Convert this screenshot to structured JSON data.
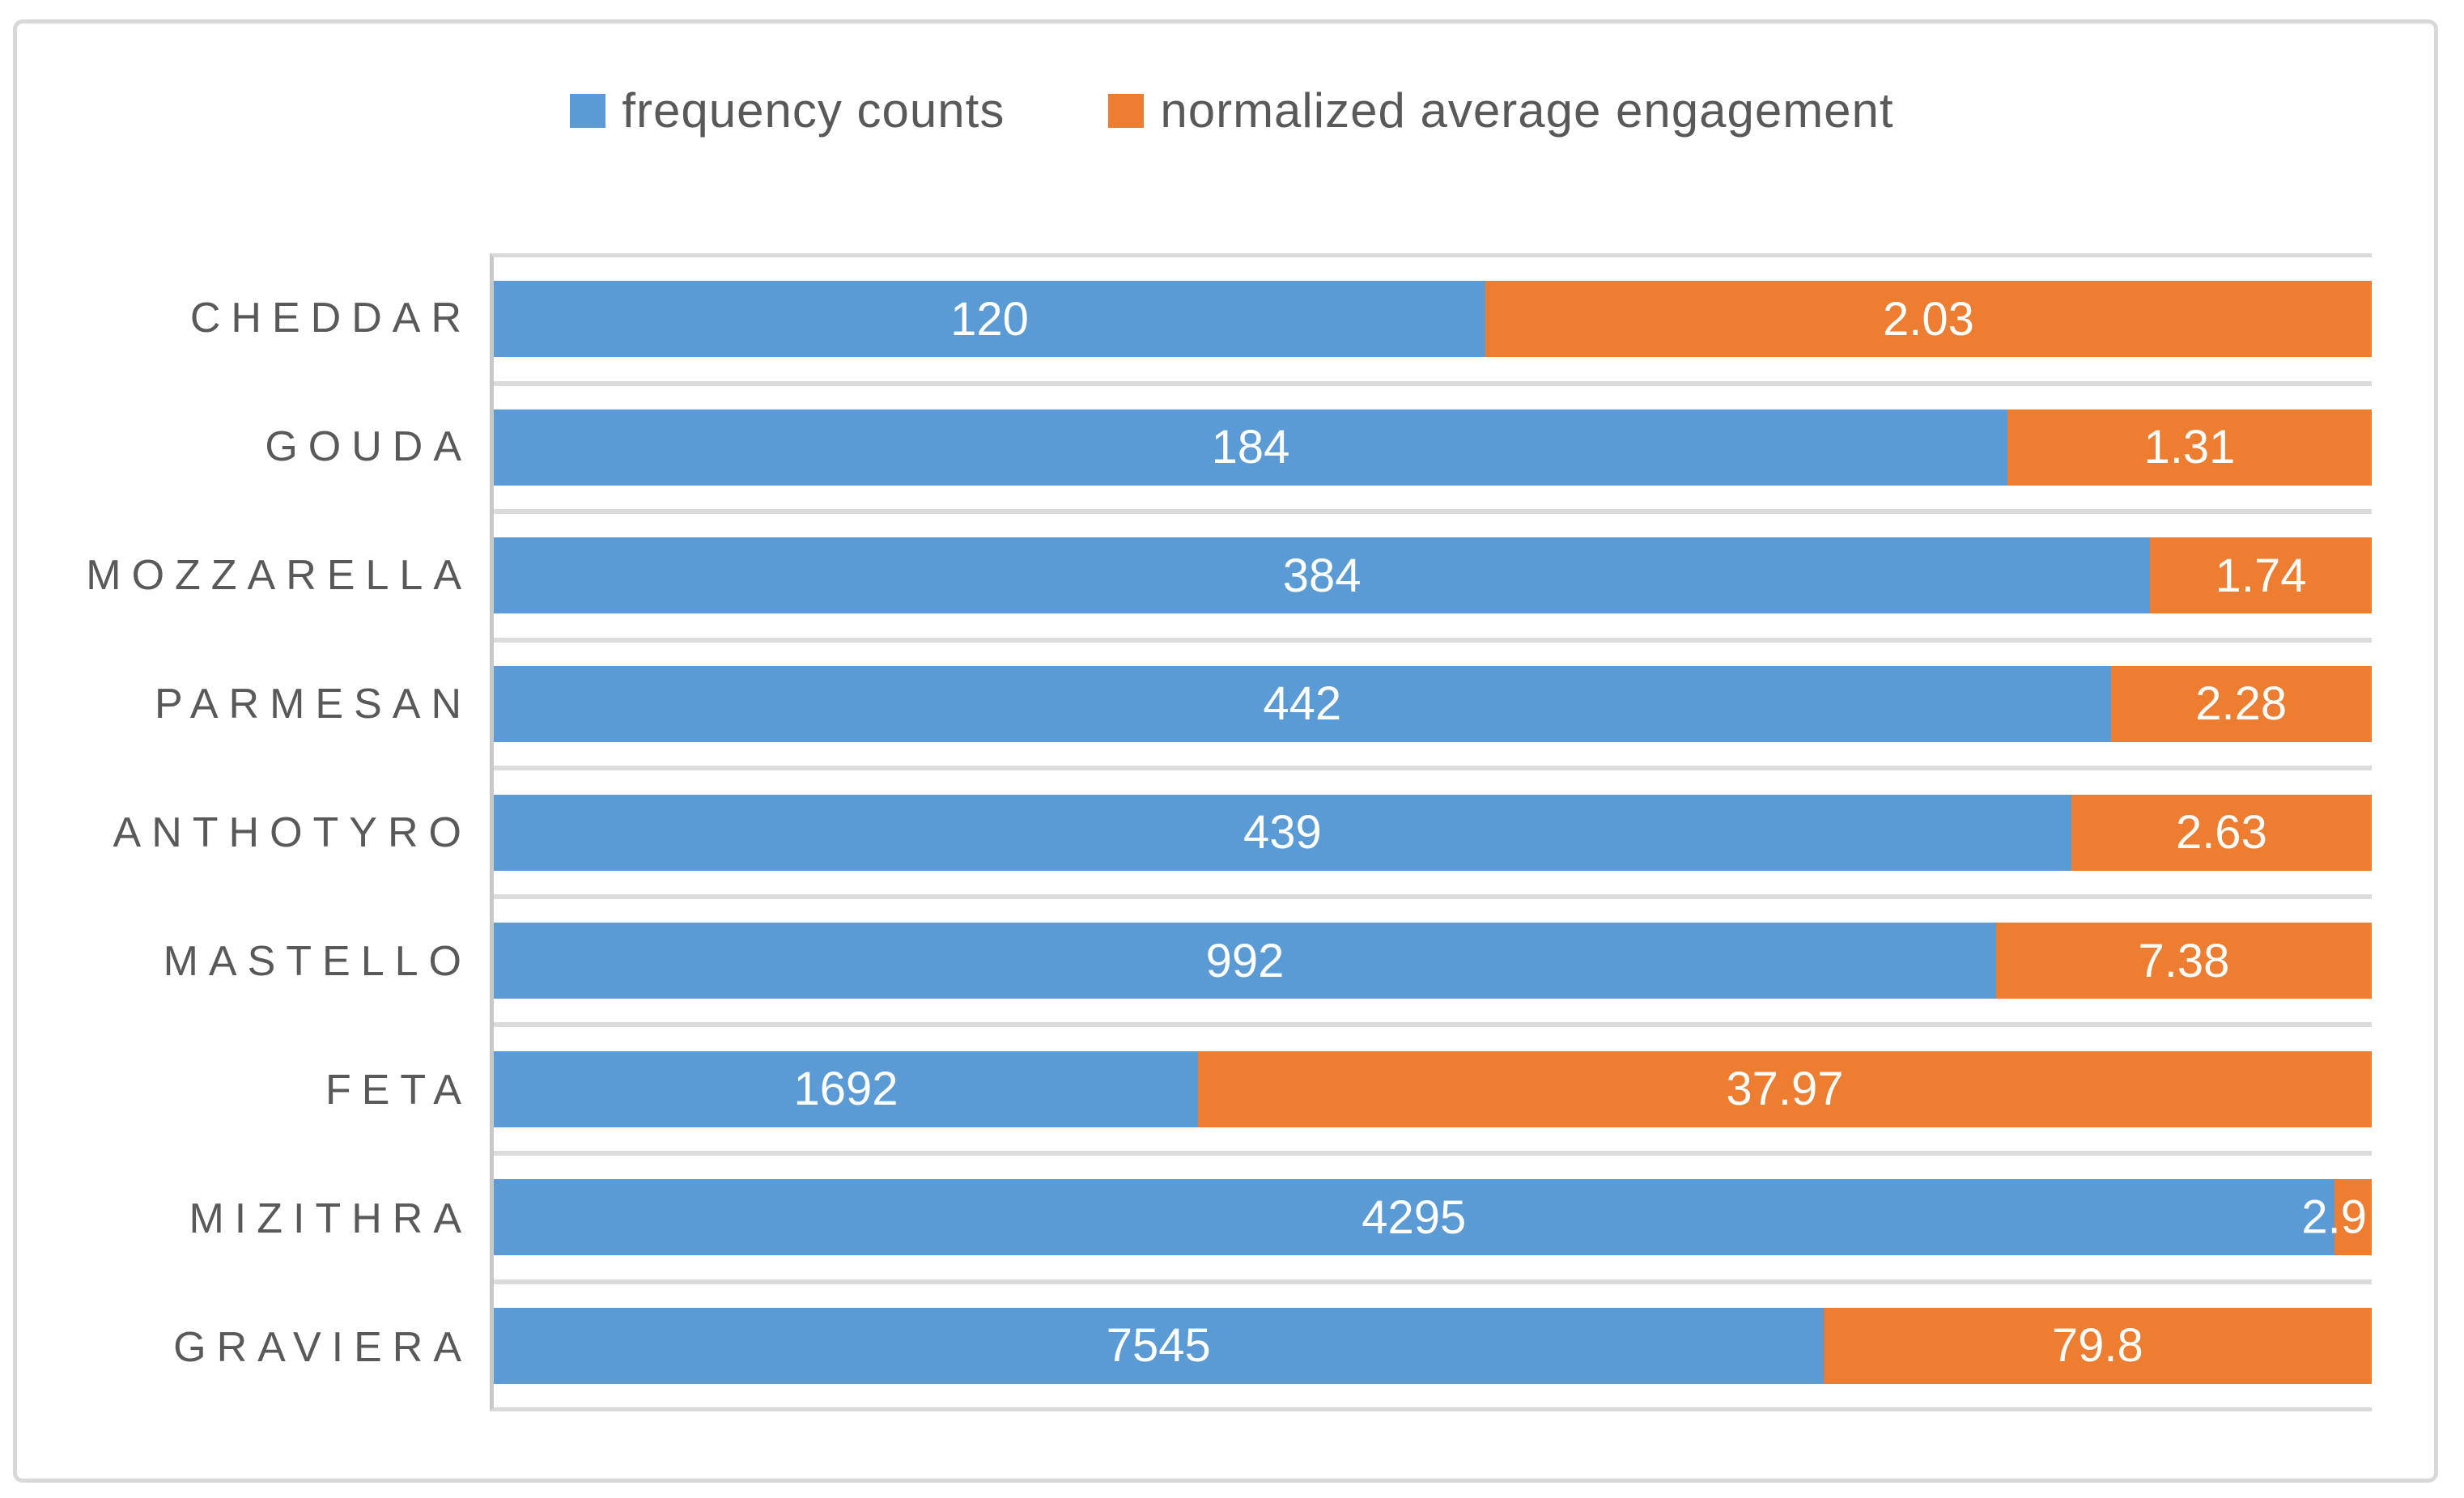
{
  "legend": {
    "items": [
      {
        "label": "frequency counts",
        "color": "#5B9BD5"
      },
      {
        "label": "normalized average engagement",
        "color": "#ED7D31"
      }
    ]
  },
  "chart_data": {
    "type": "bar",
    "subtype": "horizontal-100pct-stacked",
    "title": "",
    "categories": [
      "CHEDDAR",
      "GOUDA",
      "MOZZARELLA",
      "PARMESAN",
      "ANTHOTYRO",
      "MASTELLO",
      "FETA",
      "MIZITHRA",
      "GRAVIERA"
    ],
    "series": [
      {
        "name": "frequency counts",
        "color": "#5B9BD5",
        "values": [
          120,
          184,
          384,
          442,
          439,
          992,
          1692,
          4295,
          7545
        ]
      },
      {
        "name": "normalized average engagement",
        "color": "#ED7D31",
        "values": [
          2.03,
          1.31,
          1.74,
          2.28,
          2.63,
          7.38,
          37.97,
          2.9,
          79.8
        ]
      }
    ],
    "value_label_strings": {
      "frequency": [
        "120",
        "184",
        "384",
        "442",
        "439",
        "992",
        "1692",
        "4295",
        "7545"
      ],
      "engagement": [
        "2.03",
        "1.31",
        "1.74",
        "2.28",
        "2.63",
        "7.38",
        "37.97",
        "2.9",
        "79.8"
      ]
    },
    "blue_segment_width_pct": [
      52.8,
      80.6,
      88.2,
      86.1,
      84.0,
      80.0,
      37.5,
      98.0,
      70.8
    ],
    "legend_position": "top-center",
    "grid": "horizontal category separators only, light gray",
    "axis_labels_shown": false,
    "colors": {
      "blue": "#5B9BD5",
      "orange": "#ED7D31",
      "category_text": "#595959",
      "legend_text": "#595959",
      "separator": "#DCDCDC",
      "plot_border": "#D9D9D9",
      "axis_line": "#C9C9C9",
      "outer_frame": "#D8D8D8"
    }
  }
}
